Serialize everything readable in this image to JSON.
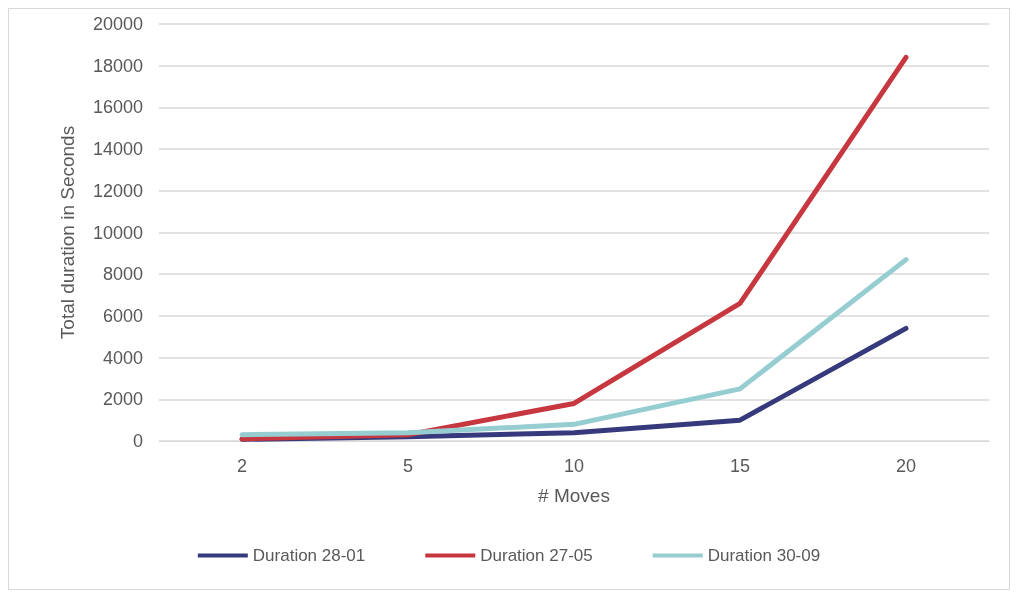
{
  "chart_data": {
    "type": "line",
    "xlabel": "# Moves",
    "ylabel": "Total duration in Seconds",
    "categories": [
      "2",
      "5",
      "10",
      "15",
      "20"
    ],
    "series": [
      {
        "name": "Duration 28-01",
        "color": "#363a7c",
        "values": [
          80,
          200,
          400,
          1000,
          5400
        ]
      },
      {
        "name": "Duration 27-05",
        "color": "#c6373f",
        "values": [
          100,
          300,
          1800,
          6600,
          18400
        ]
      },
      {
        "name": "Duration 30-09",
        "color": "#95cdd1",
        "values": [
          300,
          400,
          800,
          2500,
          8700
        ]
      }
    ],
    "ylim": [
      0,
      20000
    ],
    "yticks": [
      0,
      2000,
      4000,
      6000,
      8000,
      10000,
      12000,
      14000,
      16000,
      18000,
      20000
    ],
    "grid": "y",
    "legend": "bottom",
    "marker": "none",
    "line_style": "solid"
  }
}
